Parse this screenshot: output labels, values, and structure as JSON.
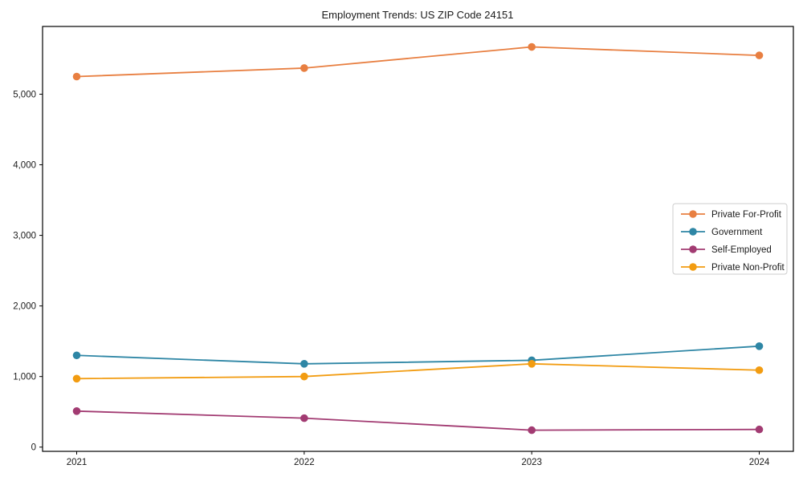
{
  "chart_data": {
    "type": "line",
    "title": "Employment Trends: US ZIP Code 24151",
    "x": [
      2021,
      2022,
      2023,
      2024
    ],
    "xtick_labels": [
      "2021",
      "2022",
      "2023",
      "2024"
    ],
    "series": [
      {
        "name": "Private For-Profit",
        "color": "#e87f41",
        "values": [
          5250,
          5370,
          5670,
          5550
        ]
      },
      {
        "name": "Government",
        "color": "#2e86a5",
        "values": [
          1300,
          1180,
          1230,
          1430
        ]
      },
      {
        "name": "Self-Employed",
        "color": "#a23b72",
        "values": [
          510,
          410,
          240,
          250
        ]
      },
      {
        "name": "Private Non-Profit",
        "color": "#f29c11",
        "values": [
          970,
          1000,
          1180,
          1090
        ]
      }
    ],
    "yticks": [
      0,
      1000,
      2000,
      3000,
      4000,
      5000
    ],
    "ytick_labels": [
      "0",
      "1,000",
      "2,000",
      "3,000",
      "4,000",
      "5,000"
    ],
    "xlim": [
      2020.85,
      2024.15
    ],
    "ylim": [
      -60,
      5960
    ],
    "xlabel": "",
    "ylabel": "",
    "grid": false,
    "legend_position": "center right",
    "axis_color": "#000000",
    "text_color": "#1a1a1a",
    "legend_border_color": "#cccccc",
    "legend_background": "#ffffff",
    "plot_background": "#ffffff"
  }
}
